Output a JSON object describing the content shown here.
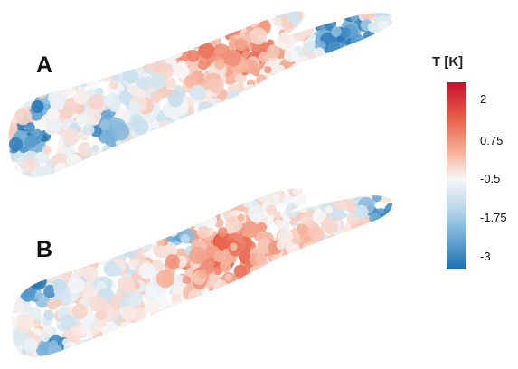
{
  "panels": {
    "a_label": "A",
    "b_label": "B"
  },
  "colorbar": {
    "title": "T [K]",
    "ticks": [
      "2",
      "0.75",
      "-0.5",
      "-1.75",
      "-3"
    ],
    "range": [
      -3,
      2
    ],
    "colors": [
      "#c8102e",
      "#e8624a",
      "#f6b39c",
      "#f7f7f7",
      "#b7d7ea",
      "#6aa8d4",
      "#1f6fb2"
    ]
  }
}
